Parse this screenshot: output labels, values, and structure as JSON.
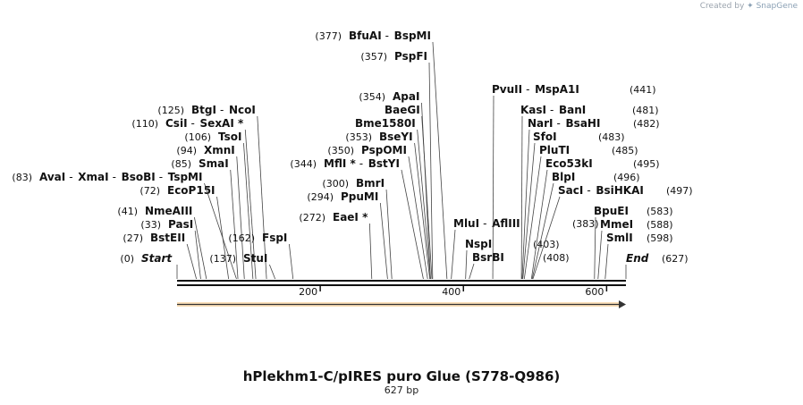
{
  "credit": {
    "prefix": "Created by",
    "brand": "SnapGene"
  },
  "title": "hPlekhm1-C/pIRES puro Glue (S778-Q986)",
  "length_label": "627 bp",
  "ticks": [
    "200",
    "400",
    "600"
  ],
  "bar_color": "#f0a030",
  "labels": [
    {
      "pos": "(0)",
      "names": [
        "Start"
      ],
      "italic": true
    },
    {
      "pos": "(627)",
      "names": [
        "End"
      ],
      "italic": true
    },
    {
      "pos": "(27)",
      "names": [
        "BstEII"
      ]
    },
    {
      "pos": "(33)",
      "names": [
        "PasI"
      ]
    },
    {
      "pos": "(41)",
      "names": [
        "NmeAIII"
      ]
    },
    {
      "pos": "(72)",
      "names": [
        "EcoP15I"
      ]
    },
    {
      "pos": "(83)",
      "names": [
        "AvaI",
        "XmaI",
        "BsoBI",
        "TspMI"
      ]
    },
    {
      "pos": "(85)",
      "names": [
        "SmaI"
      ]
    },
    {
      "pos": "(94)",
      "names": [
        "XmnI"
      ]
    },
    {
      "pos": "(106)",
      "names": [
        "TsoI"
      ]
    },
    {
      "pos": "(110)",
      "names": [
        "CsiI",
        "SexAI *"
      ]
    },
    {
      "pos": "(125)",
      "names": [
        "BtgI",
        "NcoI"
      ]
    },
    {
      "pos": "(137)",
      "names": [
        "StuI"
      ]
    },
    {
      "pos": "(162)",
      "names": [
        "FspI"
      ]
    },
    {
      "pos": "(272)",
      "names": [
        "EaeI *"
      ]
    },
    {
      "pos": "(294)",
      "names": [
        "PpuMI"
      ]
    },
    {
      "pos": "(300)",
      "names": [
        "BmrI"
      ]
    },
    {
      "pos": "(344)",
      "names": [
        "MflI *",
        "BstYI"
      ]
    },
    {
      "pos": "(350)",
      "names": [
        "PspOMI"
      ]
    },
    {
      "pos": "(353)",
      "names": [
        "BseYI"
      ]
    },
    {
      "pos": "",
      "names": [
        "Bme1580I"
      ]
    },
    {
      "pos": "",
      "names": [
        "BaeGI"
      ]
    },
    {
      "pos": "(354)",
      "names": [
        "ApaI"
      ]
    },
    {
      "pos": "(357)",
      "names": [
        "PspFI"
      ]
    },
    {
      "pos": "(377)",
      "names": [
        "BfuAI",
        "BspMI"
      ]
    },
    {
      "pos": "(383)",
      "names": [
        "MluI",
        "AflIII"
      ]
    },
    {
      "pos": "(403)",
      "names": [
        "NspI"
      ]
    },
    {
      "pos": "(408)",
      "names": [
        "BsrBI"
      ]
    },
    {
      "pos": "(441)",
      "names": [
        "PvuII",
        "MspA1I"
      ]
    },
    {
      "pos": "(481)",
      "names": [
        "KasI",
        "BanI"
      ]
    },
    {
      "pos": "(482)",
      "names": [
        "NarI",
        "BsaHI"
      ]
    },
    {
      "pos": "(483)",
      "names": [
        "SfoI"
      ]
    },
    {
      "pos": "(485)",
      "names": [
        "PluTI"
      ]
    },
    {
      "pos": "(495)",
      "names": [
        "Eco53kI"
      ]
    },
    {
      "pos": "(496)",
      "names": [
        "BlpI"
      ]
    },
    {
      "pos": "(497)",
      "names": [
        "SacI",
        "BsiHKAI"
      ]
    },
    {
      "pos": "(583)",
      "names": [
        "BpuEI"
      ]
    },
    {
      "pos": "(588)",
      "names": [
        "MmeI"
      ]
    },
    {
      "pos": "(598)",
      "names": [
        "SmlI"
      ]
    }
  ]
}
